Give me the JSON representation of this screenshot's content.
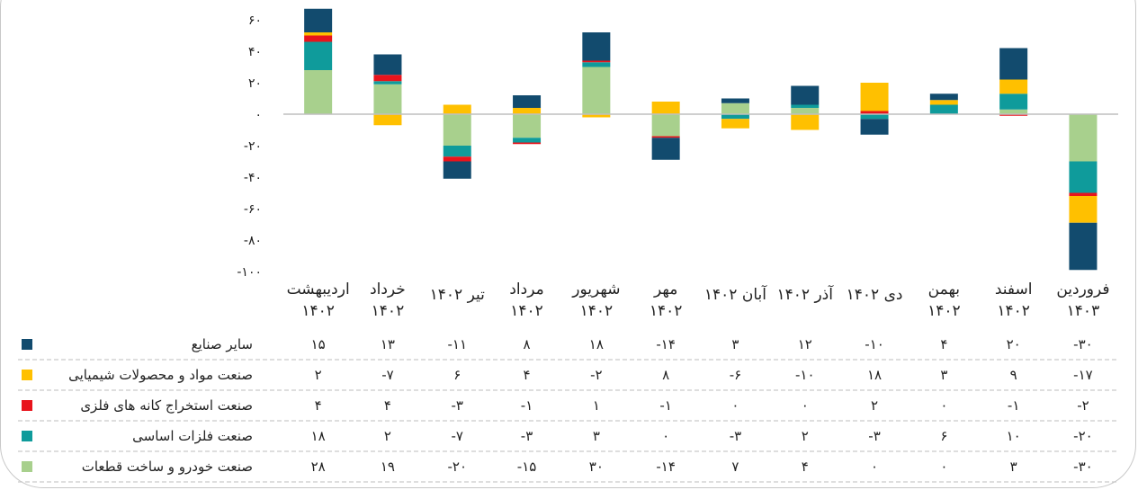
{
  "chart_data": {
    "type": "bar",
    "stacked": true,
    "ylim": [
      -100,
      60
    ],
    "yticks": [
      "۶۰",
      "۴۰",
      "۲۰",
      "۰",
      "-۲۰",
      "-۴۰",
      "-۶۰",
      "-۸۰",
      "-۱۰۰"
    ],
    "ytick_values": [
      60,
      40,
      20,
      0,
      -20,
      -40,
      -60,
      -80,
      -100
    ],
    "categories": [
      [
        "اردیبهشت",
        "۱۴۰۲"
      ],
      [
        "خرداد",
        "۱۴۰۲"
      ],
      [
        "تیر ۱۴۰۲"
      ],
      [
        "مرداد",
        "۱۴۰۲"
      ],
      [
        "شهریور",
        "۱۴۰۲"
      ],
      [
        "مهر",
        "۱۴۰۲"
      ],
      [
        "آبان ۱۴۰۲"
      ],
      [
        "آذر ۱۴۰۲"
      ],
      [
        "دی ۱۴۰۲"
      ],
      [
        "بهمن",
        "۱۴۰۲"
      ],
      [
        "اسفند",
        "۱۴۰۲"
      ],
      [
        "فروردین",
        "۱۴۰۳"
      ]
    ],
    "series": [
      {
        "name": "صنعت خودرو و ساخت قطعات",
        "color": "#a8d08d",
        "values": [
          28,
          19,
          -20,
          -15,
          30,
          -14,
          7,
          4,
          0,
          0,
          3,
          -30
        ],
        "labels": [
          "۲۸",
          "۱۹",
          "-۲۰",
          "-۱۵",
          "۳۰",
          "-۱۴",
          "۷",
          "۴",
          "۰",
          "۰",
          "۳",
          "-۳۰"
        ]
      },
      {
        "name": "صنعت فلزات اساسی",
        "color": "#0f9b9b",
        "values": [
          18,
          2,
          -7,
          -3,
          3,
          0,
          -3,
          2,
          -3,
          6,
          10,
          -20
        ],
        "labels": [
          "۱۸",
          "۲",
          "-۷",
          "-۳",
          "۳",
          "۰",
          "-۳",
          "۲",
          "-۳",
          "۶",
          "۱۰",
          "-۲۰"
        ]
      },
      {
        "name": "صنعت استخراج کانه های فلزی",
        "color": "#e8141c",
        "values": [
          4,
          4,
          -3,
          -1,
          1,
          -1,
          0,
          0,
          2,
          0,
          -1,
          -2
        ],
        "labels": [
          "۴",
          "۴",
          "-۳",
          "-۱",
          "۱",
          "-۱",
          "۰",
          "۰",
          "۲",
          "۰",
          "-۱",
          "-۲"
        ]
      },
      {
        "name": "صنعت مواد و محصولات شیمیایی",
        "color": "#ffc000",
        "values": [
          2,
          -7,
          6,
          4,
          -2,
          8,
          -6,
          -10,
          18,
          3,
          9,
          -17
        ],
        "labels": [
          "۲",
          "-۷",
          "۶",
          "۴",
          "-۲",
          "۸",
          "-۶",
          "-۱۰",
          "۱۸",
          "۳",
          "۹",
          "-۱۷"
        ]
      },
      {
        "name": "سایر صنایع",
        "color": "#124b6e",
        "values": [
          15,
          13,
          -11,
          8,
          18,
          -14,
          3,
          12,
          -10,
          4,
          20,
          -30
        ],
        "labels": [
          "۱۵",
          "۱۳",
          "-۱۱",
          "۸",
          "۱۸",
          "-۱۴",
          "۳",
          "۱۲",
          "-۱۰",
          "۴",
          "۲۰",
          "-۳۰"
        ]
      }
    ],
    "table_row_order": [
      4,
      3,
      2,
      1,
      0
    ],
    "grid": false,
    "legend": "table-rows-left"
  }
}
